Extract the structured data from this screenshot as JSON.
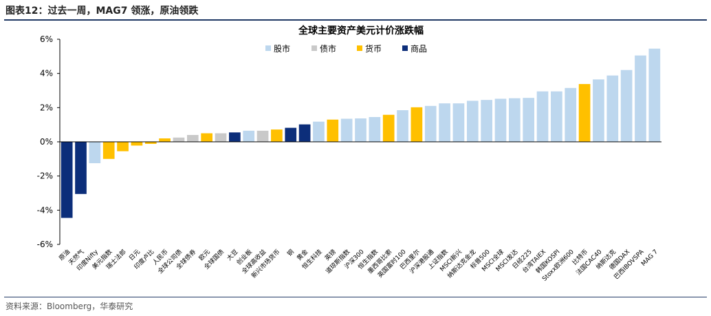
{
  "figure": {
    "label": "图表12：",
    "heading": "过去一周，MAG7 领涨，原油领跌",
    "source": "资料来源：Bloomberg，华泰研究"
  },
  "colors": {
    "股市": "#bdd7ee",
    "债市": "#c9c9c9",
    "货币": "#ffc000",
    "商品": "#0c2e7a",
    "rule": "#1f3864"
  },
  "chart_data": {
    "type": "bar",
    "title": "全球主要资产美元计价涨跌幅",
    "ylim": [
      -6,
      6
    ],
    "yticks": [
      -6,
      -4,
      -2,
      0,
      2,
      4,
      6
    ],
    "ytick_format": "percent",
    "grid": false,
    "legend_position": "top",
    "legend": [
      "股市",
      "债市",
      "货币",
      "商品"
    ],
    "categories": [
      "原油",
      "天然气",
      "印度Nifty",
      "美元指数",
      "瑞士法郎",
      "日元",
      "印度卢比",
      "人民币",
      "全球公司债",
      "全球债券",
      "欧元",
      "全球国债",
      "大豆",
      "创业板",
      "全球高收益",
      "新兴市场货币",
      "铜",
      "黄金",
      "恒生科技",
      "英镑",
      "道琼斯指数",
      "沪深300",
      "恒生指数",
      "墨西哥比索",
      "英国富时100",
      "巴西里尔",
      "沪深港股通",
      "上证指数",
      "MSCI新兴",
      "纳斯达克金龙",
      "标普500",
      "MSCI全球",
      "MSCI发达",
      "日经225",
      "台湾TAIEX",
      "韩国KOSPI",
      "Stoxx欧洲600",
      "比特币",
      "法国CAC40",
      "纳斯达克",
      "德国DAX",
      "巴西IBOVSPA",
      "MAG 7"
    ],
    "asset_classes": [
      "商品",
      "商品",
      "股市",
      "货币",
      "货币",
      "货币",
      "货币",
      "货币",
      "债市",
      "债市",
      "货币",
      "债市",
      "商品",
      "股市",
      "债市",
      "货币",
      "商品",
      "商品",
      "股市",
      "货币",
      "股市",
      "股市",
      "股市",
      "货币",
      "股市",
      "货币",
      "股市",
      "股市",
      "股市",
      "股市",
      "股市",
      "股市",
      "股市",
      "股市",
      "股市",
      "股市",
      "股市",
      "货币",
      "股市",
      "股市",
      "股市",
      "股市",
      "股市"
    ],
    "values": [
      -4.45,
      -3.05,
      -1.25,
      -1.0,
      -0.55,
      -0.22,
      -0.12,
      0.2,
      0.25,
      0.4,
      0.5,
      0.5,
      0.55,
      0.65,
      0.65,
      0.72,
      0.82,
      1.02,
      1.18,
      1.3,
      1.35,
      1.37,
      1.45,
      1.58,
      1.85,
      2.02,
      2.1,
      2.25,
      2.25,
      2.4,
      2.45,
      2.52,
      2.55,
      2.57,
      2.95,
      2.95,
      3.15,
      3.38,
      3.65,
      3.88,
      4.2,
      5.05,
      5.45
    ]
  }
}
